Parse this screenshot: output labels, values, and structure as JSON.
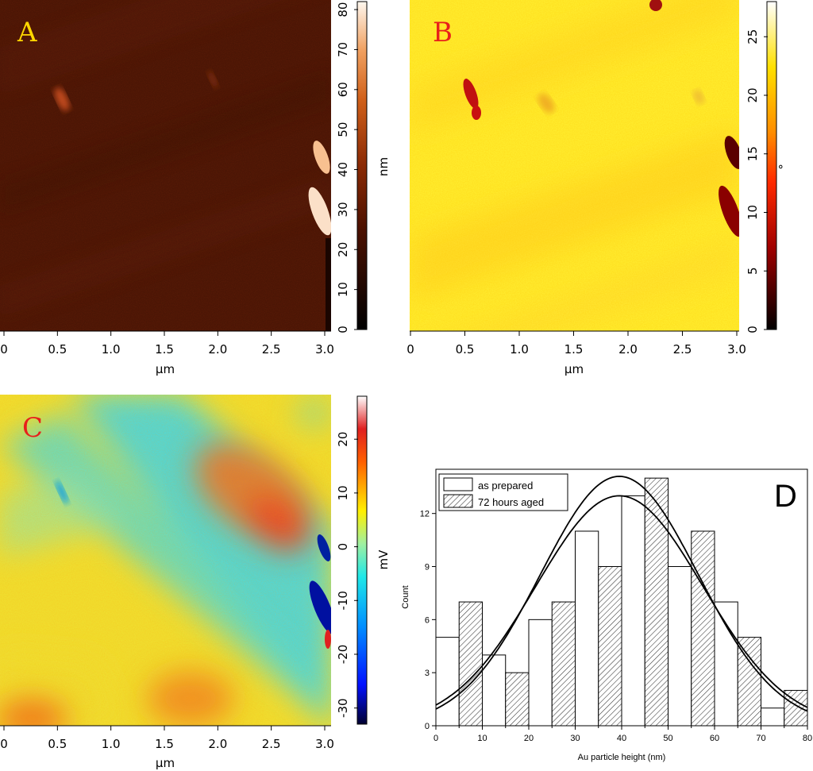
{
  "chart_data": [
    {
      "type": "heatmap",
      "panel": "A",
      "panel_label_color": "#ffd700",
      "xlabel": "µm",
      "x_ticks": [
        "0",
        "0.5",
        "1.0",
        "1.5",
        "2.0",
        "2.5",
        "3.0"
      ],
      "xlim": [
        0,
        3.0
      ],
      "colorbar_label": "nm",
      "colorbar_ticks": [
        "0",
        "10",
        "20",
        "30",
        "40",
        "50",
        "60",
        "70",
        "80"
      ],
      "colorbar_range": [
        0,
        82
      ],
      "colormap": "afmhot"
    },
    {
      "type": "heatmap",
      "panel": "B",
      "panel_label_color": "#e8201a",
      "xlabel": "µm",
      "x_ticks": [
        "0",
        "0.5",
        "1.0",
        "1.5",
        "2.0",
        "2.5",
        "3.0"
      ],
      "xlim": [
        0,
        3.0
      ],
      "colorbar_label": "°",
      "colorbar_ticks": [
        "0",
        "5",
        "10",
        "15",
        "20",
        "25"
      ],
      "colorbar_range": [
        0,
        28
      ],
      "colormap": "hot"
    },
    {
      "type": "heatmap",
      "panel": "C",
      "panel_label_color": "#e8201a",
      "xlabel": "µm",
      "x_ticks": [
        "0",
        "0.5",
        "1.0",
        "1.5",
        "2.0",
        "2.5",
        "3.0"
      ],
      "xlim": [
        0,
        3.0
      ],
      "colorbar_label": "mV",
      "colorbar_ticks": [
        "-30",
        "-20",
        "-10",
        "0",
        "10",
        "20"
      ],
      "colorbar_range": [
        -33,
        28
      ],
      "colormap": "jet"
    },
    {
      "type": "bar",
      "panel": "D",
      "xlabel": "Au particle height (nm)",
      "ylabel": "Count",
      "xlim": [
        0,
        80
      ],
      "ylim": [
        0,
        14.5
      ],
      "x_ticks": [
        0,
        10,
        20,
        30,
        40,
        50,
        60,
        70,
        80
      ],
      "y_ticks": [
        0,
        3,
        6,
        9,
        12
      ],
      "bin_width": 5,
      "series": [
        {
          "name": "as prepared",
          "pattern": "open",
          "bin_starts": [
            0,
            10,
            20,
            30,
            40,
            50,
            60,
            70
          ],
          "values": [
            5,
            4,
            6,
            11,
            13,
            9,
            7,
            1
          ]
        },
        {
          "name": "72 hours aged",
          "pattern": "hatched",
          "bin_starts": [
            5,
            15,
            25,
            35,
            45,
            55,
            65,
            75
          ],
          "values": [
            7,
            3,
            7,
            9,
            14,
            11,
            5,
            2
          ]
        }
      ],
      "fits": [
        {
          "type": "gaussian",
          "peak": 14.1,
          "center": 39.5,
          "sigma": 17
        },
        {
          "type": "gaussian",
          "peak": 13.0,
          "center": 39.5,
          "sigma": 18
        }
      ],
      "legend_position": "top-left"
    }
  ],
  "panel_labels": {
    "a": "A",
    "b": "B",
    "c": "C",
    "d": "D"
  }
}
